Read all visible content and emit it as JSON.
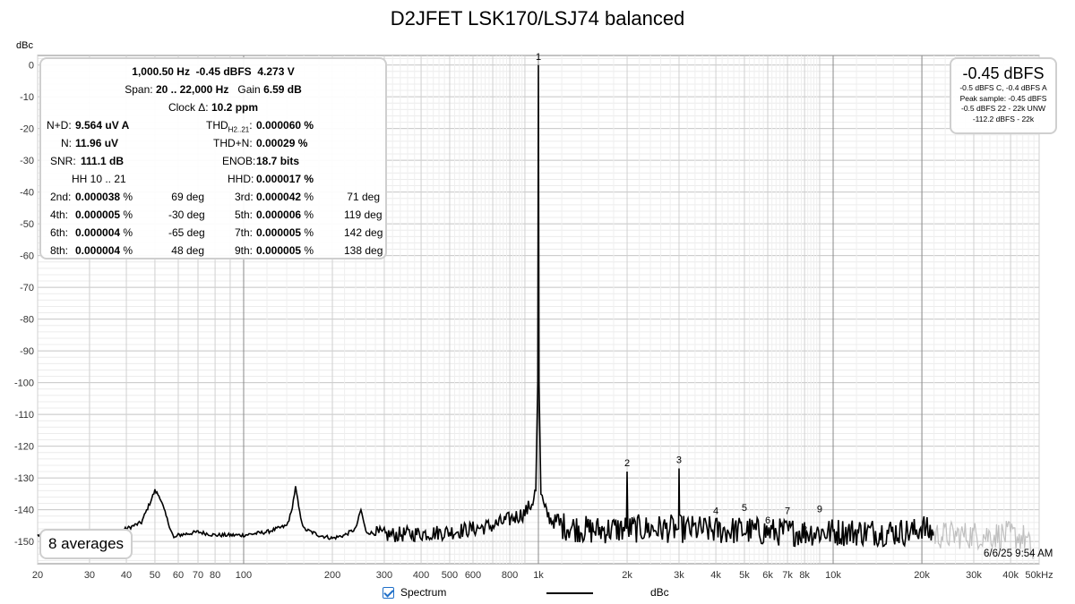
{
  "chart_data": {
    "type": "line",
    "title": "D2JFET LSK170/LSJ74 balanced",
    "ylabel": "dBc",
    "xlabel": "",
    "x_scale": "log",
    "xlim": [
      20,
      50000
    ],
    "ylim": [
      -157,
      3
    ],
    "x_ticks": [
      {
        "value": 20,
        "label": "20"
      },
      {
        "value": 30,
        "label": "30"
      },
      {
        "value": 40,
        "label": "40"
      },
      {
        "value": 50,
        "label": "50"
      },
      {
        "value": 60,
        "label": "60"
      },
      {
        "value": 70,
        "label": "70"
      },
      {
        "value": 80,
        "label": "80"
      },
      {
        "value": 100,
        "label": "100"
      },
      {
        "value": 200,
        "label": "200"
      },
      {
        "value": 300,
        "label": "300"
      },
      {
        "value": 400,
        "label": "400"
      },
      {
        "value": 500,
        "label": "500"
      },
      {
        "value": 600,
        "label": "600"
      },
      {
        "value": 800,
        "label": "800"
      },
      {
        "value": 1000,
        "label": "1k"
      },
      {
        "value": 2000,
        "label": "2k"
      },
      {
        "value": 3000,
        "label": "3k"
      },
      {
        "value": 4000,
        "label": "4k"
      },
      {
        "value": 5000,
        "label": "5k"
      },
      {
        "value": 6000,
        "label": "6k"
      },
      {
        "value": 7000,
        "label": "7k"
      },
      {
        "value": 8000,
        "label": "8k"
      },
      {
        "value": 10000,
        "label": "10k"
      },
      {
        "value": 20000,
        "label": "20k"
      },
      {
        "value": 30000,
        "label": "30k"
      },
      {
        "value": 40000,
        "label": "40k"
      },
      {
        "value": 50000,
        "label": "50kHz"
      }
    ],
    "y_ticks": [
      0,
      -10,
      -20,
      -30,
      -40,
      -50,
      -60,
      -70,
      -80,
      -90,
      -100,
      -110,
      -120,
      -130,
      -140,
      -150
    ],
    "grid": true,
    "series": [
      {
        "name": "dBc",
        "color": "#000000",
        "x": [
          20,
          30,
          35,
          40,
          45,
          48,
          50,
          52,
          55,
          58,
          60,
          65,
          70,
          80,
          100,
          120,
          140,
          145,
          150,
          155,
          160,
          180,
          200,
          220,
          240,
          250,
          260,
          300,
          400,
          500,
          600,
          700,
          800,
          900,
          950,
          980,
          995,
          1000,
          1005,
          1020,
          1050,
          1100,
          1200,
          1500,
          1990,
          2000,
          2010,
          2990,
          3000,
          3010,
          4000,
          5000,
          6000,
          7000,
          8000,
          9000,
          10000,
          12000,
          15000,
          19000,
          20000,
          21000,
          22000
        ],
        "y": [
          -148,
          -149,
          -148,
          -146,
          -144,
          -138,
          -134,
          -136,
          -143,
          -149,
          -148,
          -147.5,
          -147,
          -148,
          -148,
          -147,
          -145,
          -141,
          -133,
          -141,
          -146,
          -148,
          -149,
          -148,
          -146,
          -140,
          -147,
          -148,
          -147.5,
          -147,
          -146,
          -145,
          -143,
          -141,
          -138,
          -134,
          -100,
          0,
          -100,
          -135,
          -140,
          -143,
          -145,
          -146.5,
          -146,
          -128,
          -146,
          -146,
          -127,
          -146,
          -146.5,
          -146.5,
          -147,
          -147,
          -147,
          -147,
          -147,
          -147,
          -147,
          -147,
          -145,
          -147,
          -147
        ]
      },
      {
        "name": "",
        "color": "#c0c0c0",
        "x": [
          22000,
          30000,
          40000,
          45000,
          48000
        ],
        "y": [
          -148,
          -148,
          -148,
          -149,
          -155
        ]
      }
    ],
    "harmonic_markers": [
      {
        "label": "1",
        "x": 1000,
        "y": 0
      },
      {
        "label": "2",
        "x": 2000,
        "y": -128
      },
      {
        "label": "3",
        "x": 3000,
        "y": -127
      },
      {
        "label": "4",
        "x": 4000,
        "y": -143
      },
      {
        "label": "5",
        "x": 5000,
        "y": -142
      },
      {
        "label": "6",
        "x": 6000,
        "y": -146
      },
      {
        "label": "7",
        "x": 7000,
        "y": -143
      },
      {
        "label": "8",
        "x": 8000,
        "y": -149
      },
      {
        "label": "9",
        "x": 9000,
        "y": -142.5
      }
    ]
  },
  "info": {
    "line1": {
      "freq": "1,000.50 Hz",
      "dbfs": "-0.45 dBFS",
      "volts": "4.273 V"
    },
    "line2": {
      "span_label": "Span:",
      "span": "20 .. 22,000 Hz",
      "gain_label": "Gain",
      "gain": "6.59 dB"
    },
    "line3": {
      "label": "Clock Δ:",
      "value": "10.2 ppm"
    },
    "nd_label": "N+D:",
    "nd_value": "9.564 uV A",
    "thd_label": "THD",
    "thd_sub": "H2..21",
    "thd_value": "0.000060 %",
    "n_label": "N:",
    "n_value": "11.96 uV",
    "thdn_label": "THD+N:",
    "thdn_value": "0.00029 %",
    "snr_label": "SNR:",
    "snr_value": "111.1 dB",
    "enob_label": "ENOB:",
    "enob_value": "18.7 bits",
    "hh_label": "HH 10 .. 21",
    "hhd_label": "HHD:",
    "hhd_value": "0.000017 %",
    "harmonics": [
      {
        "label": "2nd:",
        "value": "0.000038",
        "unit": "%",
        "deg": "69 deg"
      },
      {
        "label": "3rd:",
        "value": "0.000042",
        "unit": "%",
        "deg": "71 deg"
      },
      {
        "label": "4th:",
        "value": "0.000005",
        "unit": "%",
        "deg": "-30 deg"
      },
      {
        "label": "5th:",
        "value": "0.000006",
        "unit": "%",
        "deg": "119 deg"
      },
      {
        "label": "6th:",
        "value": "0.000004",
        "unit": "%",
        "deg": "-65 deg"
      },
      {
        "label": "7th:",
        "value": "0.000005",
        "unit": "%",
        "deg": "142 deg"
      },
      {
        "label": "8th:",
        "value": "0.000004",
        "unit": "%",
        "deg": "48 deg"
      },
      {
        "label": "9th:",
        "value": "0.000005",
        "unit": "%",
        "deg": "138 deg"
      }
    ]
  },
  "level": {
    "main": "-0.45 dBFS",
    "lines": [
      "-0.5 dBFS C, -0.4 dBFS A",
      "Peak sample: -0.45 dBFS",
      "-0.5 dBFS 22 - 22k UNW",
      "-112.2 dBFS - 22k"
    ]
  },
  "averages": "8 averages",
  "timestamp": "6/6/25 9:54 AM",
  "legend": {
    "checkbox_label": "Spectrum",
    "series_label": "dBc",
    "checked": true
  }
}
